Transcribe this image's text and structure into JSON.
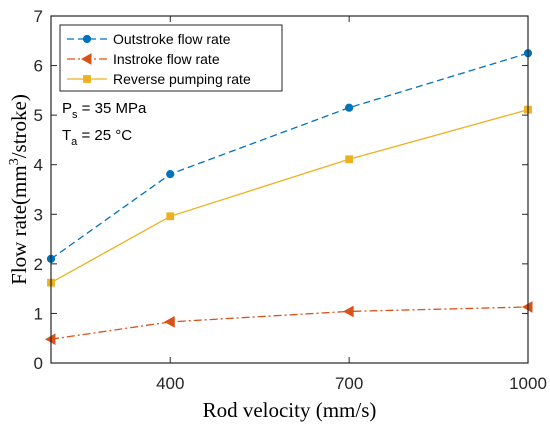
{
  "chart_data": {
    "type": "line",
    "xlabel": "Rod velocity (mm/s)",
    "ylabel_parts": {
      "before_sup": "Flow rate(mm",
      "sup": "3",
      "after_sup": "/stroke)"
    },
    "xlim": [
      200,
      1000
    ],
    "ylim": [
      0,
      7
    ],
    "x_ticks": [
      400,
      700,
      1000
    ],
    "y_ticks": [
      0,
      1,
      2,
      3,
      4,
      5,
      6,
      7
    ],
    "grid": false,
    "legend_position": "top-left",
    "series": [
      {
        "name": "Outstroke flow rate",
        "color": "#0072BD",
        "line_style": "dashed",
        "marker": "circle",
        "x": [
          200,
          400,
          700,
          1000
        ],
        "y": [
          2.1,
          3.81,
          5.15,
          6.25
        ]
      },
      {
        "name": "Instroke flow rate",
        "color": "#D95319",
        "line_style": "dash-dot",
        "marker": "left-triangle",
        "x": [
          200,
          400,
          700,
          1000
        ],
        "y": [
          0.48,
          0.83,
          1.04,
          1.13
        ]
      },
      {
        "name": "Reverse pumping rate",
        "color": "#EDB120",
        "line_style": "solid",
        "marker": "square",
        "x": [
          200,
          400,
          700,
          1000
        ],
        "y": [
          1.62,
          2.96,
          4.11,
          5.11
        ]
      }
    ],
    "annotations": [
      {
        "main": "P",
        "sub": "s",
        "rest": " = 35 MPa"
      },
      {
        "main": "T",
        "sub": "a",
        "rest": " = 25 °C"
      }
    ]
  }
}
